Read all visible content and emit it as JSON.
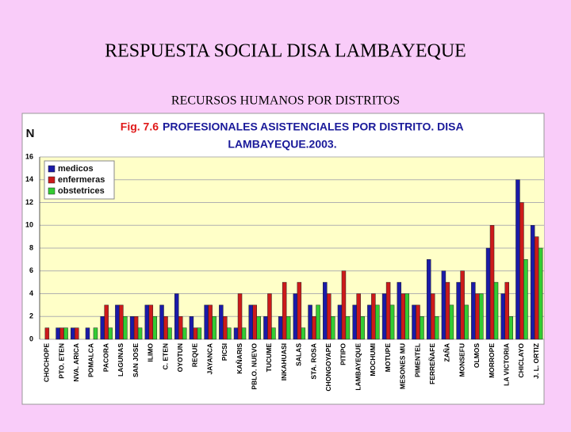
{
  "header": {
    "title": "RESPUESTA SOCIAL DISA LAMBAYEQUE",
    "subtitle": "RECURSOS HUMANOS POR DISTRITOS"
  },
  "chart_data": {
    "type": "bar",
    "title_prefix": "Fig. 7.6",
    "title": [
      "PROFESIONALES ASISTENCIALES POR DISTRITO. DISA",
      "LAMBAYEQUE.2003."
    ],
    "y_label": "N",
    "categories": [
      "CHOCHOPE",
      "PTO. ETEN",
      "NVA. ARICA",
      "POMALCA",
      "PACORA",
      "LAGUNAS",
      "SAN JOSE",
      "ILIMO",
      "C. ETEN",
      "OYOTUN",
      "REQUE",
      "JAYANCA",
      "PICSI",
      "KAÑARIS",
      "PBLO. NUEVO",
      "TUCUME",
      "INKAHUASI",
      "SALAS",
      "STA. ROSA",
      "CHONGOYAPE",
      "PITIPO",
      "LAMBAYEQUE",
      "MOCHUMI",
      "MOTUPE",
      "MESONES MU",
      "PIMENTEL",
      "FERREÑAFE",
      "ZAÑA",
      "MONSEFU",
      "OLMOS",
      "MORROPE",
      "LA VICTORIA",
      "CHICLAYO",
      "J. L. ORTIZ"
    ],
    "series": [
      {
        "name": "medicos",
        "color": "#1a1aa8",
        "values": [
          0,
          1,
          1,
          1,
          2,
          3,
          2,
          3,
          3,
          4,
          2,
          3,
          3,
          1,
          3,
          2,
          2,
          4,
          3,
          5,
          3,
          3,
          3,
          4,
          5,
          3,
          7,
          6,
          5,
          5,
          8,
          4,
          14,
          10
        ]
      },
      {
        "name": "enfermeras",
        "color": "#cc1a1a",
        "values": [
          1,
          1,
          1,
          0,
          3,
          3,
          2,
          3,
          2,
          2,
          1,
          3,
          2,
          4,
          3,
          4,
          5,
          5,
          2,
          4,
          6,
          4,
          4,
          5,
          4,
          3,
          4,
          5,
          6,
          4,
          10,
          5,
          12,
          9
        ]
      },
      {
        "name": "obstetrices",
        "color": "#33cc33",
        "values": [
          0,
          1,
          0,
          1,
          1,
          2,
          1,
          2,
          1,
          1,
          1,
          2,
          1,
          1,
          2,
          1,
          2,
          1,
          3,
          2,
          2,
          2,
          3,
          3,
          4,
          2,
          2,
          3,
          3,
          4,
          5,
          2,
          7,
          8
        ]
      }
    ],
    "ylim": [
      0,
      16
    ],
    "yticks": [
      0,
      2,
      4,
      6,
      8,
      10,
      12,
      14,
      16
    ],
    "grid": true,
    "legend": "top-left"
  }
}
